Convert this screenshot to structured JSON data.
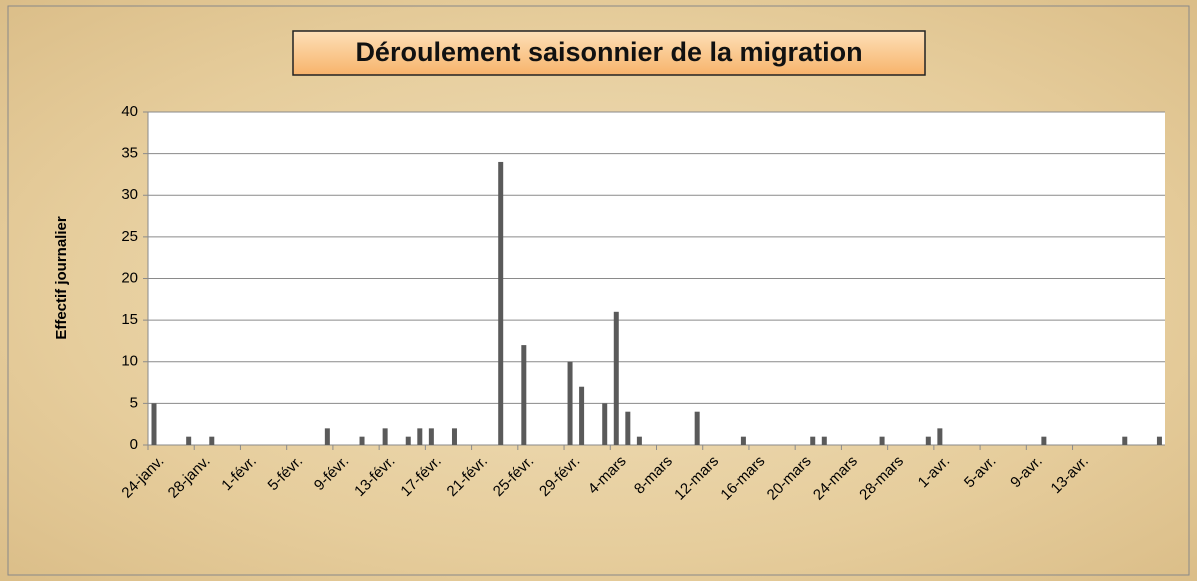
{
  "chart_data": {
    "type": "bar",
    "title": "Déroulement saisonnier de la migration",
    "y_label": "Effectif journalier",
    "categories": [
      "24-janv.",
      null,
      null,
      null,
      "28-janv.",
      null,
      null,
      null,
      "1-févr.",
      null,
      null,
      null,
      "5-févr.",
      null,
      null,
      null,
      "9-févr.",
      null,
      null,
      null,
      "13-févr.",
      null,
      null,
      null,
      "17-févr.",
      null,
      null,
      null,
      "21-févr.",
      null,
      null,
      null,
      "25-févr.",
      null,
      null,
      null,
      "29-févr.",
      null,
      null,
      null,
      "4-mars",
      null,
      null,
      null,
      "8-mars",
      null,
      null,
      null,
      "12-mars",
      null,
      null,
      null,
      "16-mars",
      null,
      null,
      null,
      "20-mars",
      null,
      null,
      null,
      "24-mars",
      null,
      null,
      null,
      "28-mars",
      null,
      null,
      null,
      "1-avr.",
      null,
      null,
      null,
      "5-avr.",
      null,
      null,
      null,
      "9-avr.",
      null,
      null,
      null,
      "13-avr.",
      null,
      null,
      null,
      null,
      null,
      null,
      null
    ],
    "values": [
      5,
      0,
      0,
      1,
      0,
      1,
      0,
      0,
      0,
      0,
      0,
      0,
      0,
      0,
      0,
      2,
      0,
      0,
      1,
      0,
      2,
      0,
      1,
      2,
      2,
      0,
      2,
      0,
      0,
      0,
      34,
      0,
      12,
      0,
      0,
      0,
      10,
      7,
      0,
      5,
      16,
      4,
      1,
      0,
      0,
      0,
      0,
      4,
      0,
      0,
      0,
      1,
      0,
      0,
      0,
      0,
      0,
      1,
      1,
      0,
      0,
      0,
      0,
      1,
      0,
      0,
      0,
      1,
      2,
      0,
      0,
      0,
      0,
      0,
      0,
      0,
      0,
      1,
      0,
      0,
      0,
      0,
      0,
      0,
      1,
      0,
      0,
      1
    ],
    "color": "#5a5a5a",
    "ylim": [
      0,
      40
    ],
    "yticks": [
      0,
      5,
      10,
      15,
      20,
      25,
      30,
      35,
      40
    ],
    "grid": true
  }
}
